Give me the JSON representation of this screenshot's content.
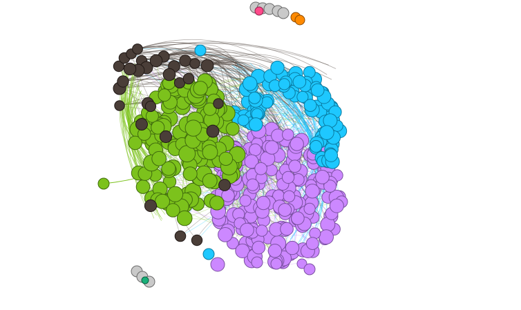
{
  "graph": {
    "type": "force-directed network",
    "background": "#ffffff",
    "communities": [
      {
        "color": "#cc88ff",
        "stroke": "#7a50a0"
      },
      {
        "color": "#7cc21c",
        "stroke": "#3f6a0d"
      },
      {
        "color": "#1ec8ff",
        "stroke": "#0a7aa0"
      },
      {
        "color": "#4a3e38",
        "stroke": "#201815"
      },
      {
        "color": "#c9c9c9",
        "stroke": "#6b6b6b"
      },
      {
        "color": "#ff8a00",
        "stroke": "#8a4a00"
      },
      {
        "color": "#ff4a8a",
        "stroke": "#8a2048"
      },
      {
        "color": "#1ab07a",
        "stroke": "#0a6040"
      }
    ],
    "edge_opacity": 0.35
  }
}
